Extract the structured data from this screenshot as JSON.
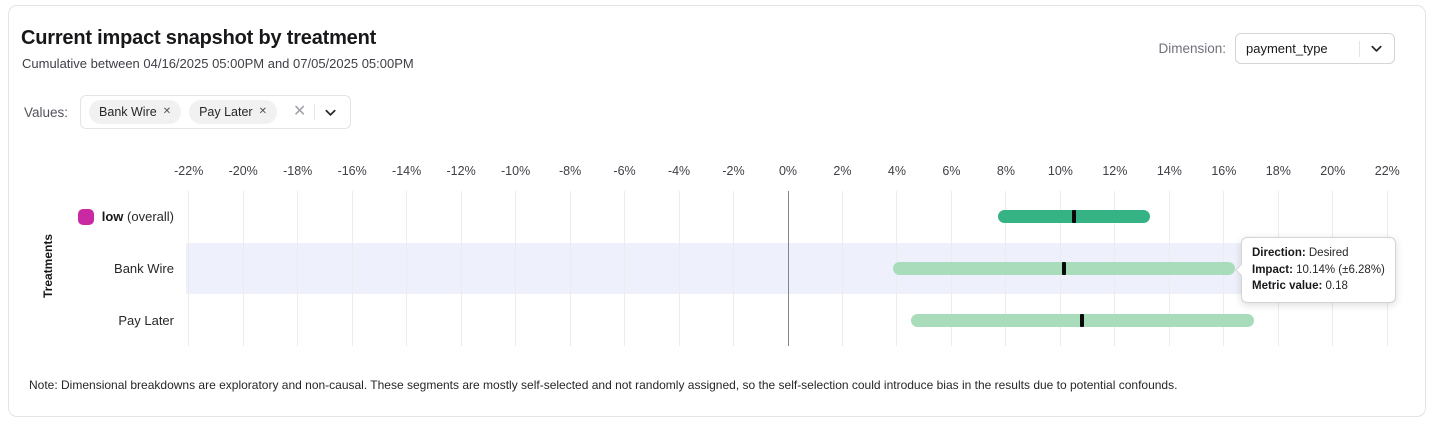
{
  "card": {
    "title": "Current impact snapshot by treatment",
    "subtitle": "Cumulative between 04/16/2025 05:00PM and 07/05/2025 05:00PM",
    "note": "Note: Dimensional breakdowns are exploratory and non-causal. These segments are mostly self-selected and not randomly assigned, so the self-selection could introduce bias in the results due to potential confounds."
  },
  "dimension": {
    "label": "Dimension:",
    "selected_value": "payment_type",
    "chevron_icon": "chevron-down"
  },
  "values_filter": {
    "label": "Values:",
    "chips": [
      {
        "text": "Bank Wire",
        "remove_icon": "x"
      },
      {
        "text": "Pay Later",
        "remove_icon": "x"
      }
    ],
    "remove_glyph": "✕",
    "clear_glyph": "✕",
    "clear_icon": "x-clear-all",
    "chevron_icon": "chevron-down"
  },
  "chart_data": {
    "type": "bar",
    "subtype": "horizontal-interval-with-point",
    "title": "Current impact snapshot by treatment",
    "ylabel": "Treatments",
    "xlabel": "",
    "axis_unit": "%",
    "xlim": [
      -23,
      23
    ],
    "tick_step": 2,
    "ticks": [
      -22,
      -20,
      -18,
      -16,
      -14,
      -12,
      -10,
      -8,
      -6,
      -4,
      -2,
      0,
      2,
      4,
      6,
      8,
      10,
      12,
      14,
      16,
      18,
      20,
      22
    ],
    "grid": "vertical",
    "rows": [
      {
        "label": "low",
        "label_suffix": " (overall)",
        "impact_pct": 10.5,
        "margin_pct": 2.8,
        "ci_low_pct": 7.7,
        "ci_high_pct": 13.3,
        "bar_color": "#35b384",
        "legend_color": "#c92aa3",
        "highlighted": false
      },
      {
        "label": "Bank Wire",
        "label_suffix": "",
        "impact_pct": 10.14,
        "margin_pct": 6.28,
        "ci_low_pct": 3.86,
        "ci_high_pct": 16.42,
        "bar_color": "#a8dcbb",
        "legend_color": null,
        "highlighted": true
      },
      {
        "label": "Pay Later",
        "label_suffix": "",
        "impact_pct": 10.8,
        "margin_pct": 6.3,
        "ci_low_pct": 4.5,
        "ci_high_pct": 17.1,
        "bar_color": "#a8dcbb",
        "legend_color": null,
        "highlighted": false
      }
    ],
    "colors": {
      "highlight_band": "#eef0fb",
      "gridline": "#ececee",
      "zero_line": "#84848c",
      "point_marker": "#0a0a0a"
    }
  },
  "tooltip": {
    "direction_label": "Direction:",
    "direction_value": "Desired",
    "impact_label": "Impact:",
    "impact_value": "10.14% (±6.28%)",
    "metric_label": "Metric value:",
    "metric_value": "0.18"
  }
}
